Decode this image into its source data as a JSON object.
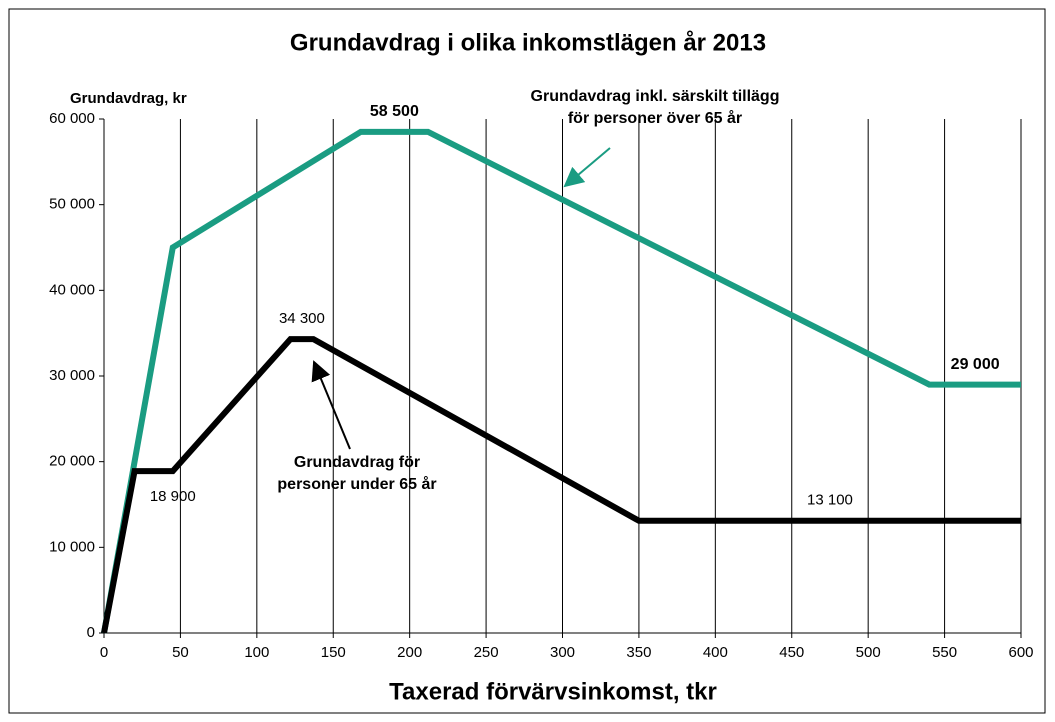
{
  "chart_data": {
    "type": "line",
    "title": "Grundavdrag i olika inkomstlägen år 2013",
    "y_label": "Grundavdrag, kr",
    "x_label": "Taxerad förvärvsinkomst, tkr",
    "xlim": [
      0,
      600
    ],
    "xticks": [
      0,
      50,
      100,
      150,
      200,
      250,
      300,
      350,
      400,
      450,
      500,
      550,
      600
    ],
    "ylim": [
      0,
      60000
    ],
    "yticks": [
      0,
      {
        "value": 10000,
        "label": "10 000"
      },
      {
        "value": 20000,
        "label": "20 000"
      },
      {
        "value": 30000,
        "label": "30 000"
      },
      {
        "value": 40000,
        "label": "40 000"
      },
      {
        "value": 50000,
        "label": "50 000"
      },
      {
        "value": 60000,
        "label": "60 000"
      }
    ],
    "grid": "x",
    "series": [
      {
        "color": "#1a9c82",
        "x": [
          0,
          45,
          168,
          212,
          540,
          600
        ],
        "values": [
          0,
          45000,
          58500,
          58500,
          29000,
          29000
        ],
        "value_labels": [
          null,
          null,
          "58 500",
          null,
          null,
          "29 000"
        ]
      },
      {
        "color": "#000000",
        "x": [
          0,
          20,
          45,
          122,
          137,
          350,
          600
        ],
        "values": [
          0,
          18900,
          18900,
          34300,
          34300,
          13100,
          13100
        ],
        "value_labels": [
          null,
          null,
          "18 900",
          "34 300",
          null,
          null,
          "13 100"
        ]
      }
    ],
    "annotations": [
      {
        "lines": [
          "Grundavdrag inkl. särskilt tillägg",
          "för personer över 65 år"
        ]
      },
      {
        "lines": [
          "Grundavdrag för",
          "personer under 65 år"
        ]
      }
    ]
  }
}
